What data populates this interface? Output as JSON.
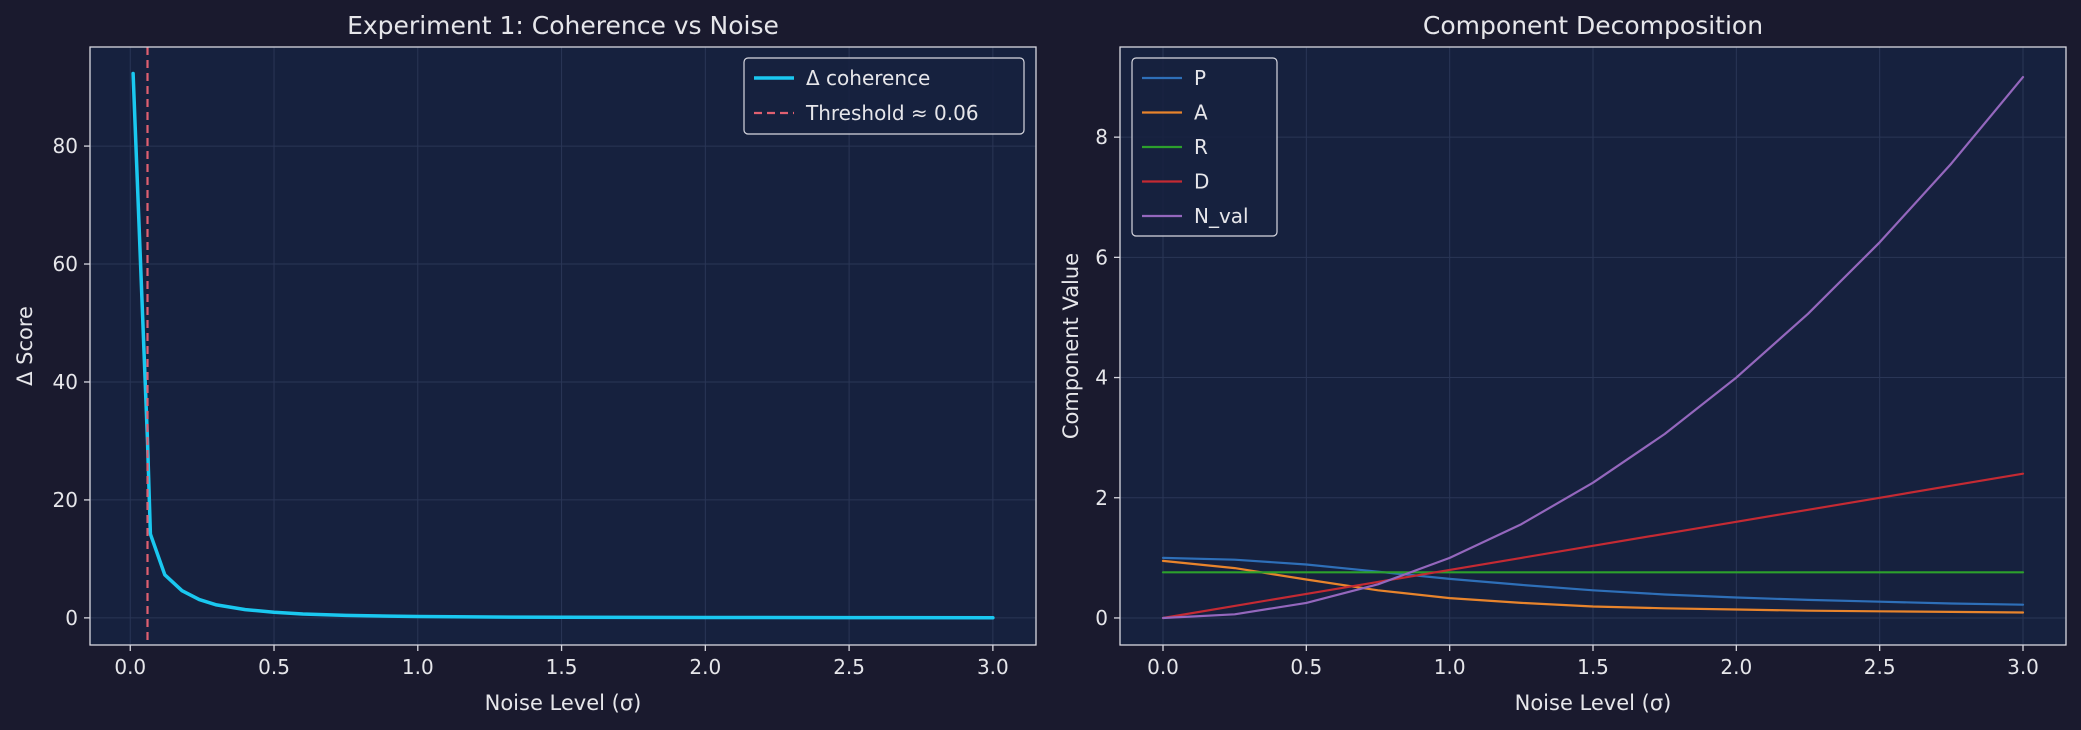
{
  "chart_data": [
    {
      "type": "line",
      "title": "Experiment 1: Coherence vs Noise",
      "xlabel": "Noise Level (σ)",
      "ylabel": "Δ Score",
      "xlim": [
        -0.14,
        3.15
      ],
      "ylim": [
        -4.6,
        96.8
      ],
      "xticks": [
        0.0,
        0.5,
        1.0,
        1.5,
        2.0,
        2.5,
        3.0
      ],
      "xtick_labels": [
        "0.0",
        "0.5",
        "1.0",
        "1.5",
        "2.0",
        "2.5",
        "3.0"
      ],
      "yticks": [
        0,
        20,
        40,
        60,
        80
      ],
      "ytick_labels": [
        "0",
        "20",
        "40",
        "60",
        "80"
      ],
      "grid": true,
      "legend": "top-right",
      "series": [
        {
          "name": "Δ coherence",
          "color": "#1ac8f0",
          "style": "solid",
          "x": [
            0.01,
            0.06,
            0.07,
            0.12,
            0.18,
            0.24,
            0.3,
            0.4,
            0.5,
            0.6,
            0.75,
            0.9,
            1.0,
            1.25,
            1.5,
            2.0,
            2.5,
            3.0
          ],
          "y": [
            92.3,
            30.0,
            14.2,
            7.3,
            4.6,
            3.1,
            2.2,
            1.4,
            0.95,
            0.66,
            0.42,
            0.3,
            0.24,
            0.15,
            0.1,
            0.06,
            0.04,
            0.03
          ]
        },
        {
          "name": "Threshold ≈ 0.06",
          "color": "#e06070",
          "style": "dashed",
          "vline": 0.06
        }
      ]
    },
    {
      "type": "line",
      "title": "Component Decomposition",
      "xlabel": "Noise Level (σ)",
      "ylabel": "Component Value",
      "xlim": [
        -0.15,
        3.15
      ],
      "ylim": [
        -0.45,
        9.5
      ],
      "xticks": [
        0.0,
        0.5,
        1.0,
        1.5,
        2.0,
        2.5,
        3.0
      ],
      "xtick_labels": [
        "0.0",
        "0.5",
        "1.0",
        "1.5",
        "2.0",
        "2.5",
        "3.0"
      ],
      "yticks": [
        0,
        2,
        4,
        6,
        8
      ],
      "ytick_labels": [
        "0",
        "2",
        "4",
        "6",
        "8"
      ],
      "grid": true,
      "legend": "top-left",
      "series": [
        {
          "name": "P",
          "color": "#2e6fb8",
          "x": [
            0.0,
            0.25,
            0.5,
            0.75,
            1.0,
            1.25,
            1.5,
            1.75,
            2.0,
            2.25,
            2.5,
            2.75,
            3.0
          ],
          "y": [
            1.0,
            0.97,
            0.89,
            0.77,
            0.65,
            0.55,
            0.46,
            0.39,
            0.34,
            0.3,
            0.27,
            0.24,
            0.22
          ]
        },
        {
          "name": "A",
          "color": "#e8842c",
          "x": [
            0.0,
            0.25,
            0.5,
            0.75,
            1.0,
            1.25,
            1.5,
            1.75,
            2.0,
            2.25,
            2.5,
            2.75,
            3.0
          ],
          "y": [
            0.95,
            0.83,
            0.64,
            0.46,
            0.33,
            0.25,
            0.19,
            0.16,
            0.14,
            0.12,
            0.11,
            0.1,
            0.09
          ]
        },
        {
          "name": "R",
          "color": "#2ca02c",
          "x": [
            0.0,
            3.0
          ],
          "y": [
            0.76,
            0.76
          ]
        },
        {
          "name": "D",
          "color": "#c42a33",
          "x": [
            0.0,
            0.25,
            0.5,
            0.75,
            1.0,
            1.25,
            1.5,
            1.75,
            2.0,
            2.25,
            2.5,
            2.75,
            3.0
          ],
          "y": [
            0.0,
            0.2,
            0.4,
            0.6,
            0.8,
            1.0,
            1.2,
            1.4,
            1.6,
            1.8,
            2.0,
            2.2,
            2.4
          ]
        },
        {
          "name": "N_val",
          "color": "#9467bd",
          "x": [
            0.0,
            0.25,
            0.5,
            0.75,
            1.0,
            1.25,
            1.5,
            1.75,
            2.0,
            2.25,
            2.5,
            2.75,
            3.0
          ],
          "y": [
            0.0,
            0.06,
            0.25,
            0.56,
            1.0,
            1.56,
            2.25,
            3.06,
            4.0,
            5.06,
            6.25,
            7.56,
            9.0
          ]
        }
      ]
    }
  ]
}
